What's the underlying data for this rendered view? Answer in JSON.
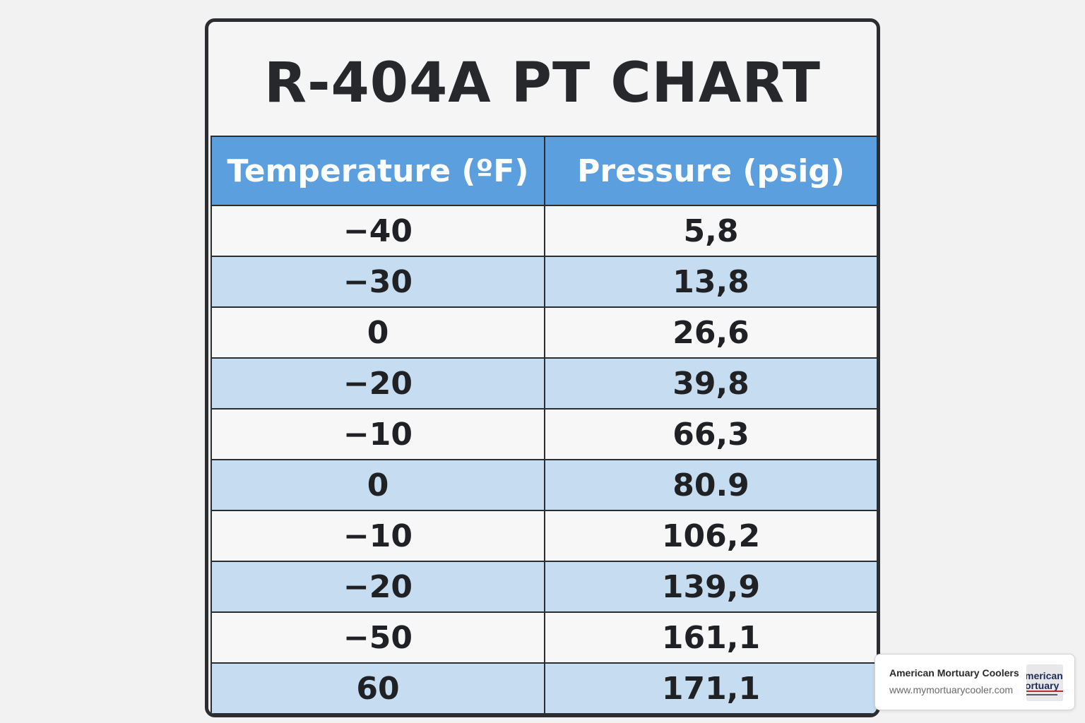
{
  "chart_data": {
    "type": "table",
    "title": "R-404A PT CHART",
    "columns": [
      "Temperature (ºF)",
      "Pressure (psig)"
    ],
    "rows": [
      [
        "−40",
        "5,8"
      ],
      [
        "−30",
        "13,8"
      ],
      [
        "0",
        "26,6"
      ],
      [
        "−20",
        "39,8"
      ],
      [
        "−10",
        "66,3"
      ],
      [
        "0",
        "80.9"
      ],
      [
        "−10",
        "106,2"
      ],
      [
        "−20",
        "139,9"
      ],
      [
        "−50",
        "161,1"
      ],
      [
        "60",
        "171,1"
      ]
    ]
  },
  "colors": {
    "header": "#5b9fde",
    "row_alt": "#c5dcf1",
    "border": "#2b2d31"
  },
  "badge": {
    "name": "American Mortuary Coolers",
    "url": "www.mymortuarycooler.com",
    "logo_text": "American Mortuary"
  }
}
